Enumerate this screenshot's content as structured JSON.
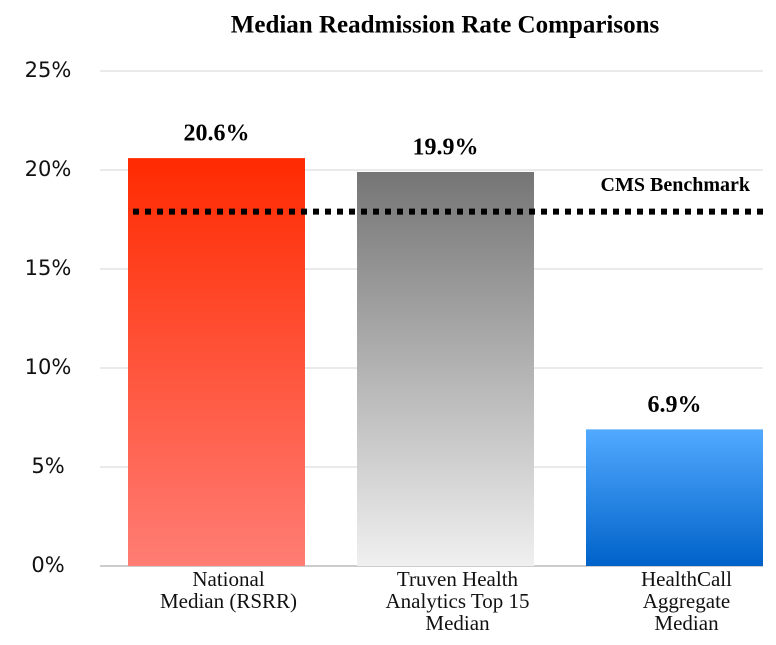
{
  "chart_data": {
    "type": "bar",
    "title": "Median Readmission Rate Comparisons",
    "categories": [
      "National Median (RSRR)",
      "Truven Health Analytics Top 15 Median",
      "HealthCall Aggregate Median"
    ],
    "values": [
      20.6,
      19.9,
      6.9
    ],
    "value_labels": [
      "20.6%",
      "19.9%",
      "6.9%"
    ],
    "gradients": [
      [
        "#ff2a00",
        "#ff7d74"
      ],
      [
        "#757575",
        "#f0f0f0"
      ],
      [
        "#52aaff",
        "#0062c9"
      ]
    ],
    "ylim": [
      0,
      25
    ],
    "yticks": [
      {
        "value": 0,
        "label": "0%"
      },
      {
        "value": 5,
        "label": "5%"
      },
      {
        "value": 10,
        "label": "10%"
      },
      {
        "value": 15,
        "label": "15%"
      },
      {
        "value": 20,
        "label": "20%"
      },
      {
        "value": 25,
        "label": "25%"
      }
    ],
    "grid": true,
    "benchmark": {
      "label": "CMS Benchmark",
      "value": 17.9
    }
  }
}
